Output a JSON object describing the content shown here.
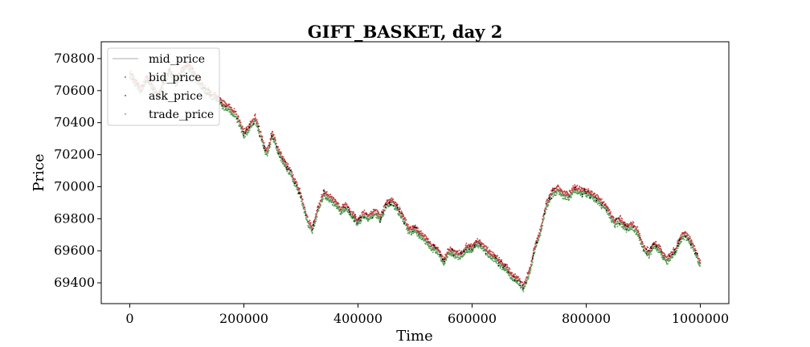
{
  "chart_data": {
    "type": "line",
    "title": "GIFT_BASKET, day 2",
    "xlabel": "Time",
    "ylabel": "Price",
    "xlim": [
      -50000,
      1050000
    ],
    "ylim": [
      69270,
      70905
    ],
    "x_ticks": [
      0,
      200000,
      400000,
      600000,
      800000,
      1000000
    ],
    "x_tick_labels": [
      "0",
      "200000",
      "400000",
      "600000",
      "800000",
      "1000000"
    ],
    "y_ticks": [
      69400,
      69600,
      69800,
      70000,
      70200,
      70400,
      70600,
      70800
    ],
    "y_tick_labels": [
      "69400",
      "69600",
      "69800",
      "70000",
      "70200",
      "70400",
      "70600",
      "70800"
    ],
    "grid": false,
    "legend_position": "top-left",
    "mid_price_path": {
      "x": [
        0,
        10000,
        20000,
        30000,
        40000,
        50000,
        60000,
        70000,
        80000,
        90000,
        100000,
        110000,
        120000,
        130000,
        140000,
        150000,
        160000,
        170000,
        180000,
        190000,
        200000,
        210000,
        220000,
        230000,
        240000,
        250000,
        260000,
        270000,
        280000,
        290000,
        300000,
        310000,
        320000,
        330000,
        340000,
        350000,
        360000,
        370000,
        380000,
        390000,
        400000,
        410000,
        420000,
        430000,
        440000,
        450000,
        460000,
        470000,
        480000,
        490000,
        500000,
        510000,
        520000,
        530000,
        540000,
        550000,
        560000,
        570000,
        580000,
        590000,
        600000,
        610000,
        620000,
        630000,
        640000,
        650000,
        660000,
        670000,
        680000,
        690000,
        700000,
        710000,
        720000,
        730000,
        740000,
        750000,
        760000,
        770000,
        780000,
        790000,
        800000,
        810000,
        820000,
        830000,
        840000,
        850000,
        860000,
        870000,
        880000,
        890000,
        900000,
        910000,
        920000,
        930000,
        940000,
        950000,
        960000,
        970000,
        980000,
        990000,
        1000000
      ],
      "y": [
        70700,
        70650,
        70600,
        70680,
        70620,
        70560,
        70660,
        70720,
        70640,
        70710,
        70760,
        70720,
        70660,
        70620,
        70580,
        70560,
        70520,
        70500,
        70470,
        70420,
        70330,
        70370,
        70420,
        70320,
        70200,
        70330,
        70230,
        70150,
        70100,
        70020,
        69950,
        69800,
        69730,
        69860,
        69960,
        69930,
        69900,
        69850,
        69880,
        69820,
        69780,
        69830,
        69810,
        69840,
        69800,
        69890,
        69910,
        69860,
        69800,
        69720,
        69740,
        69700,
        69660,
        69620,
        69600,
        69530,
        69600,
        69580,
        69570,
        69620,
        69610,
        69650,
        69620,
        69580,
        69560,
        69520,
        69490,
        69440,
        69420,
        69370,
        69460,
        69620,
        69720,
        69880,
        69960,
        69980,
        69950,
        69940,
        69990,
        69970,
        69960,
        69950,
        69920,
        69880,
        69840,
        69770,
        69790,
        69740,
        69760,
        69720,
        69620,
        69580,
        69640,
        69600,
        69540,
        69570,
        69630,
        69700,
        69680,
        69600,
        69520
      ]
    },
    "series": [
      {
        "name": "mid_price",
        "color": "#c8c8c8"
      },
      {
        "name": "bid_price",
        "color": "#4f9a4f"
      },
      {
        "name": "ask_price",
        "color": "#c03a3a"
      },
      {
        "name": "trade_price",
        "color": "#000000"
      }
    ]
  }
}
